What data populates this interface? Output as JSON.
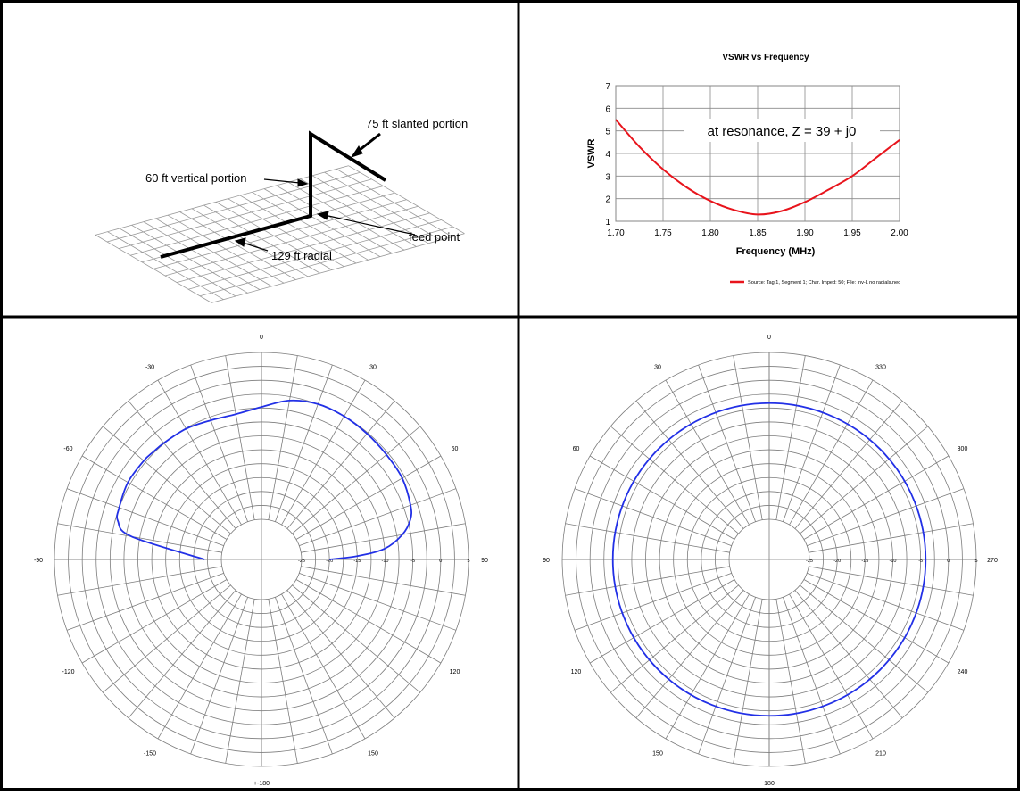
{
  "colors": {
    "border": "#000000",
    "grid": "#9a9a9a",
    "vswr_curve": "#e8141c",
    "polar_curve": "#2230e6",
    "text": "#000000"
  },
  "antenna_diagram": {
    "label_slanted": "75 ft slanted portion",
    "label_vertical": "60 ft vertical portion",
    "label_feed": "feed point",
    "label_radial": "129 ft radial"
  },
  "chart_data": [
    {
      "type": "line",
      "title": "VSWR vs Frequency",
      "xlabel": "Frequency (MHz)",
      "ylabel": "VSWR",
      "xlim": [
        1.7,
        2.0
      ],
      "ylim": [
        1,
        7
      ],
      "x_ticks": [
        "1.70",
        "1.75",
        "1.80",
        "1.85",
        "1.90",
        "1.95",
        "2.00"
      ],
      "y_ticks": [
        "1",
        "2",
        "3",
        "4",
        "5",
        "6",
        "7"
      ],
      "grid": true,
      "annotation": "at resonance, Z = 39 + j0",
      "legend_position": "bottom-right",
      "series": [
        {
          "name": "Source: Tag 1, Segment 1; Char. Imped: 50; File: inv-L no radials.nec",
          "x": [
            1.7,
            1.725,
            1.75,
            1.775,
            1.8,
            1.825,
            1.85,
            1.875,
            1.9,
            1.925,
            1.95,
            1.975,
            2.0
          ],
          "y": [
            5.5,
            4.3,
            3.3,
            2.5,
            1.9,
            1.5,
            1.3,
            1.45,
            1.85,
            2.4,
            3.0,
            3.8,
            4.6
          ]
        }
      ]
    },
    {
      "type": "polar",
      "angle_labels": [
        {
          "deg": 0,
          "text": "0"
        },
        {
          "deg": 30,
          "text": "30"
        },
        {
          "deg": 60,
          "text": "60"
        },
        {
          "deg": 90,
          "text": "90"
        },
        {
          "deg": 120,
          "text": "120"
        },
        {
          "deg": 150,
          "text": "150"
        },
        {
          "deg": 180,
          "text": "+-180"
        },
        {
          "deg": -150,
          "text": "-150"
        },
        {
          "deg": -120,
          "text": "-120"
        },
        {
          "deg": -90,
          "text": "-90"
        },
        {
          "deg": -60,
          "text": "-60"
        },
        {
          "deg": -30,
          "text": "-30"
        }
      ],
      "radial_labels": [
        "-25",
        "-20",
        "-15",
        "-10",
        "-5",
        "0",
        "5"
      ],
      "rlim": [
        -25,
        5
      ],
      "series": [
        {
          "theta": [
            -90,
            -80,
            -75,
            -70,
            -60,
            -50,
            -45,
            -40,
            -30,
            -20,
            -10,
            0,
            10,
            20,
            30,
            40,
            50,
            60,
            70,
            75,
            80,
            85,
            88,
            90
          ],
          "r": [
            -22,
            -8.5,
            -5.5,
            -5.0,
            -4.5,
            -4.6,
            -4.8,
            -4.9,
            -5.1,
            -5.6,
            -5.7,
            -4.8,
            -3.2,
            -2.5,
            -2.5,
            -2.7,
            -2.9,
            -3.0,
            -3.7,
            -4.5,
            -6.5,
            -10,
            -15,
            -20
          ]
        }
      ]
    },
    {
      "type": "polar",
      "angle_labels": [
        {
          "deg": 0,
          "text": "0"
        },
        {
          "deg": 30,
          "text": "330"
        },
        {
          "deg": 60,
          "text": "300"
        },
        {
          "deg": 90,
          "text": "270"
        },
        {
          "deg": 120,
          "text": "240"
        },
        {
          "deg": 150,
          "text": "210"
        },
        {
          "deg": 180,
          "text": "180"
        },
        {
          "deg": -150,
          "text": "150"
        },
        {
          "deg": -120,
          "text": "120"
        },
        {
          "deg": -90,
          "text": "90"
        },
        {
          "deg": -60,
          "text": "60"
        },
        {
          "deg": -30,
          "text": "30"
        }
      ],
      "radial_labels": [
        "-25",
        "-20",
        "-15",
        "-10",
        "-5",
        "0",
        "5"
      ],
      "rlim": [
        -25,
        5
      ],
      "series": [
        {
          "theta_full_circle": true,
          "r_value": -4.1
        }
      ]
    }
  ]
}
